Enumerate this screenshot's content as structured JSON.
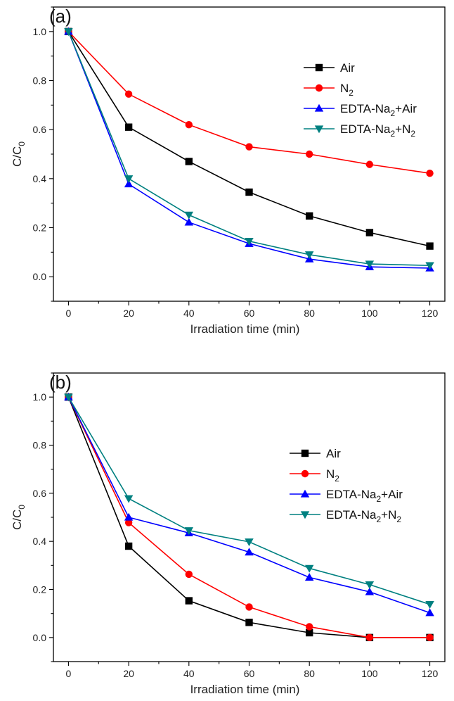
{
  "chart_data": [
    {
      "type": "line",
      "panel_label": "(a)",
      "xlabel": "Irradiation time (min)",
      "ylabel": "C/C0",
      "ylabel_main": "C/C",
      "ylabel_sub": "0",
      "xlim": [
        -5,
        125
      ],
      "ylim": [
        -0.1,
        1.1
      ],
      "x_ticks": [
        "0",
        "20",
        "40",
        "60",
        "80",
        "100",
        "120"
      ],
      "y_ticks": [
        "0.0",
        "0.2",
        "0.4",
        "0.6",
        "0.8",
        "1.0"
      ],
      "legend_placement": "upper-right",
      "x": [
        0,
        20,
        40,
        60,
        80,
        100,
        120
      ],
      "series": [
        {
          "name": "Air",
          "label_main": "Air",
          "label_sub": "",
          "label_tail": "",
          "color": "#000000",
          "marker": "square",
          "values": [
            1.0,
            0.61,
            0.47,
            0.345,
            0.248,
            0.18,
            0.125
          ]
        },
        {
          "name": "N2",
          "label_main": "N",
          "label_sub": "2",
          "label_tail": "",
          "color": "#ff0000",
          "marker": "circle",
          "values": [
            1.0,
            0.745,
            0.62,
            0.53,
            0.5,
            0.458,
            0.422
          ]
        },
        {
          "name": "EDTA-Na2+Air",
          "label_main": "EDTA-Na",
          "label_sub": "2",
          "label_tail": "+Air",
          "color": "#0000ff",
          "marker": "triangle-up",
          "values": [
            1.0,
            0.378,
            0.222,
            0.135,
            0.072,
            0.04,
            0.035
          ]
        },
        {
          "name": "EDTA-Na2+N2",
          "label_main": "EDTA-Na",
          "label_sub": "2",
          "label_tail": "+N2",
          "label_tail_main": "+N",
          "label_tail_sub": "2",
          "color": "#008080",
          "marker": "triangle-down",
          "values": [
            1.0,
            0.4,
            0.252,
            0.145,
            0.09,
            0.052,
            0.046
          ]
        }
      ]
    },
    {
      "type": "line",
      "panel_label": "(b)",
      "xlabel": "Irradiation time (min)",
      "ylabel": "C/C0",
      "ylabel_main": "C/C",
      "ylabel_sub": "0",
      "xlim": [
        -5,
        125
      ],
      "ylim": [
        -0.1,
        1.1
      ],
      "x_ticks": [
        "0",
        "20",
        "40",
        "60",
        "80",
        "100",
        "120"
      ],
      "y_ticks": [
        "0.0",
        "0.2",
        "0.4",
        "0.6",
        "0.8",
        "1.0"
      ],
      "legend_placement": "right",
      "x": [
        0,
        20,
        40,
        60,
        80,
        100,
        120
      ],
      "series": [
        {
          "name": "Air",
          "label_main": "Air",
          "label_sub": "",
          "label_tail": "",
          "color": "#000000",
          "marker": "square",
          "values": [
            1.0,
            0.38,
            0.153,
            0.063,
            0.02,
            0.0,
            0.0
          ]
        },
        {
          "name": "N2",
          "label_main": "N",
          "label_sub": "2",
          "label_tail": "",
          "color": "#ff0000",
          "marker": "circle",
          "values": [
            1.0,
            0.478,
            0.263,
            0.127,
            0.045,
            0.0,
            0.0
          ]
        },
        {
          "name": "EDTA-Na2+Air",
          "label_main": "EDTA-Na",
          "label_sub": "2",
          "label_tail": "+Air",
          "color": "#0000ff",
          "marker": "triangle-up",
          "values": [
            1.0,
            0.5,
            0.435,
            0.355,
            0.25,
            0.19,
            0.103
          ]
        },
        {
          "name": "EDTA-Na2+N2",
          "label_main": "EDTA-Na",
          "label_sub": "2",
          "label_tail": "+N2",
          "label_tail_main": "+N",
          "label_tail_sub": "2",
          "color": "#008080",
          "marker": "triangle-down",
          "values": [
            1.0,
            0.578,
            0.445,
            0.398,
            0.288,
            0.22,
            0.138
          ]
        }
      ]
    }
  ]
}
